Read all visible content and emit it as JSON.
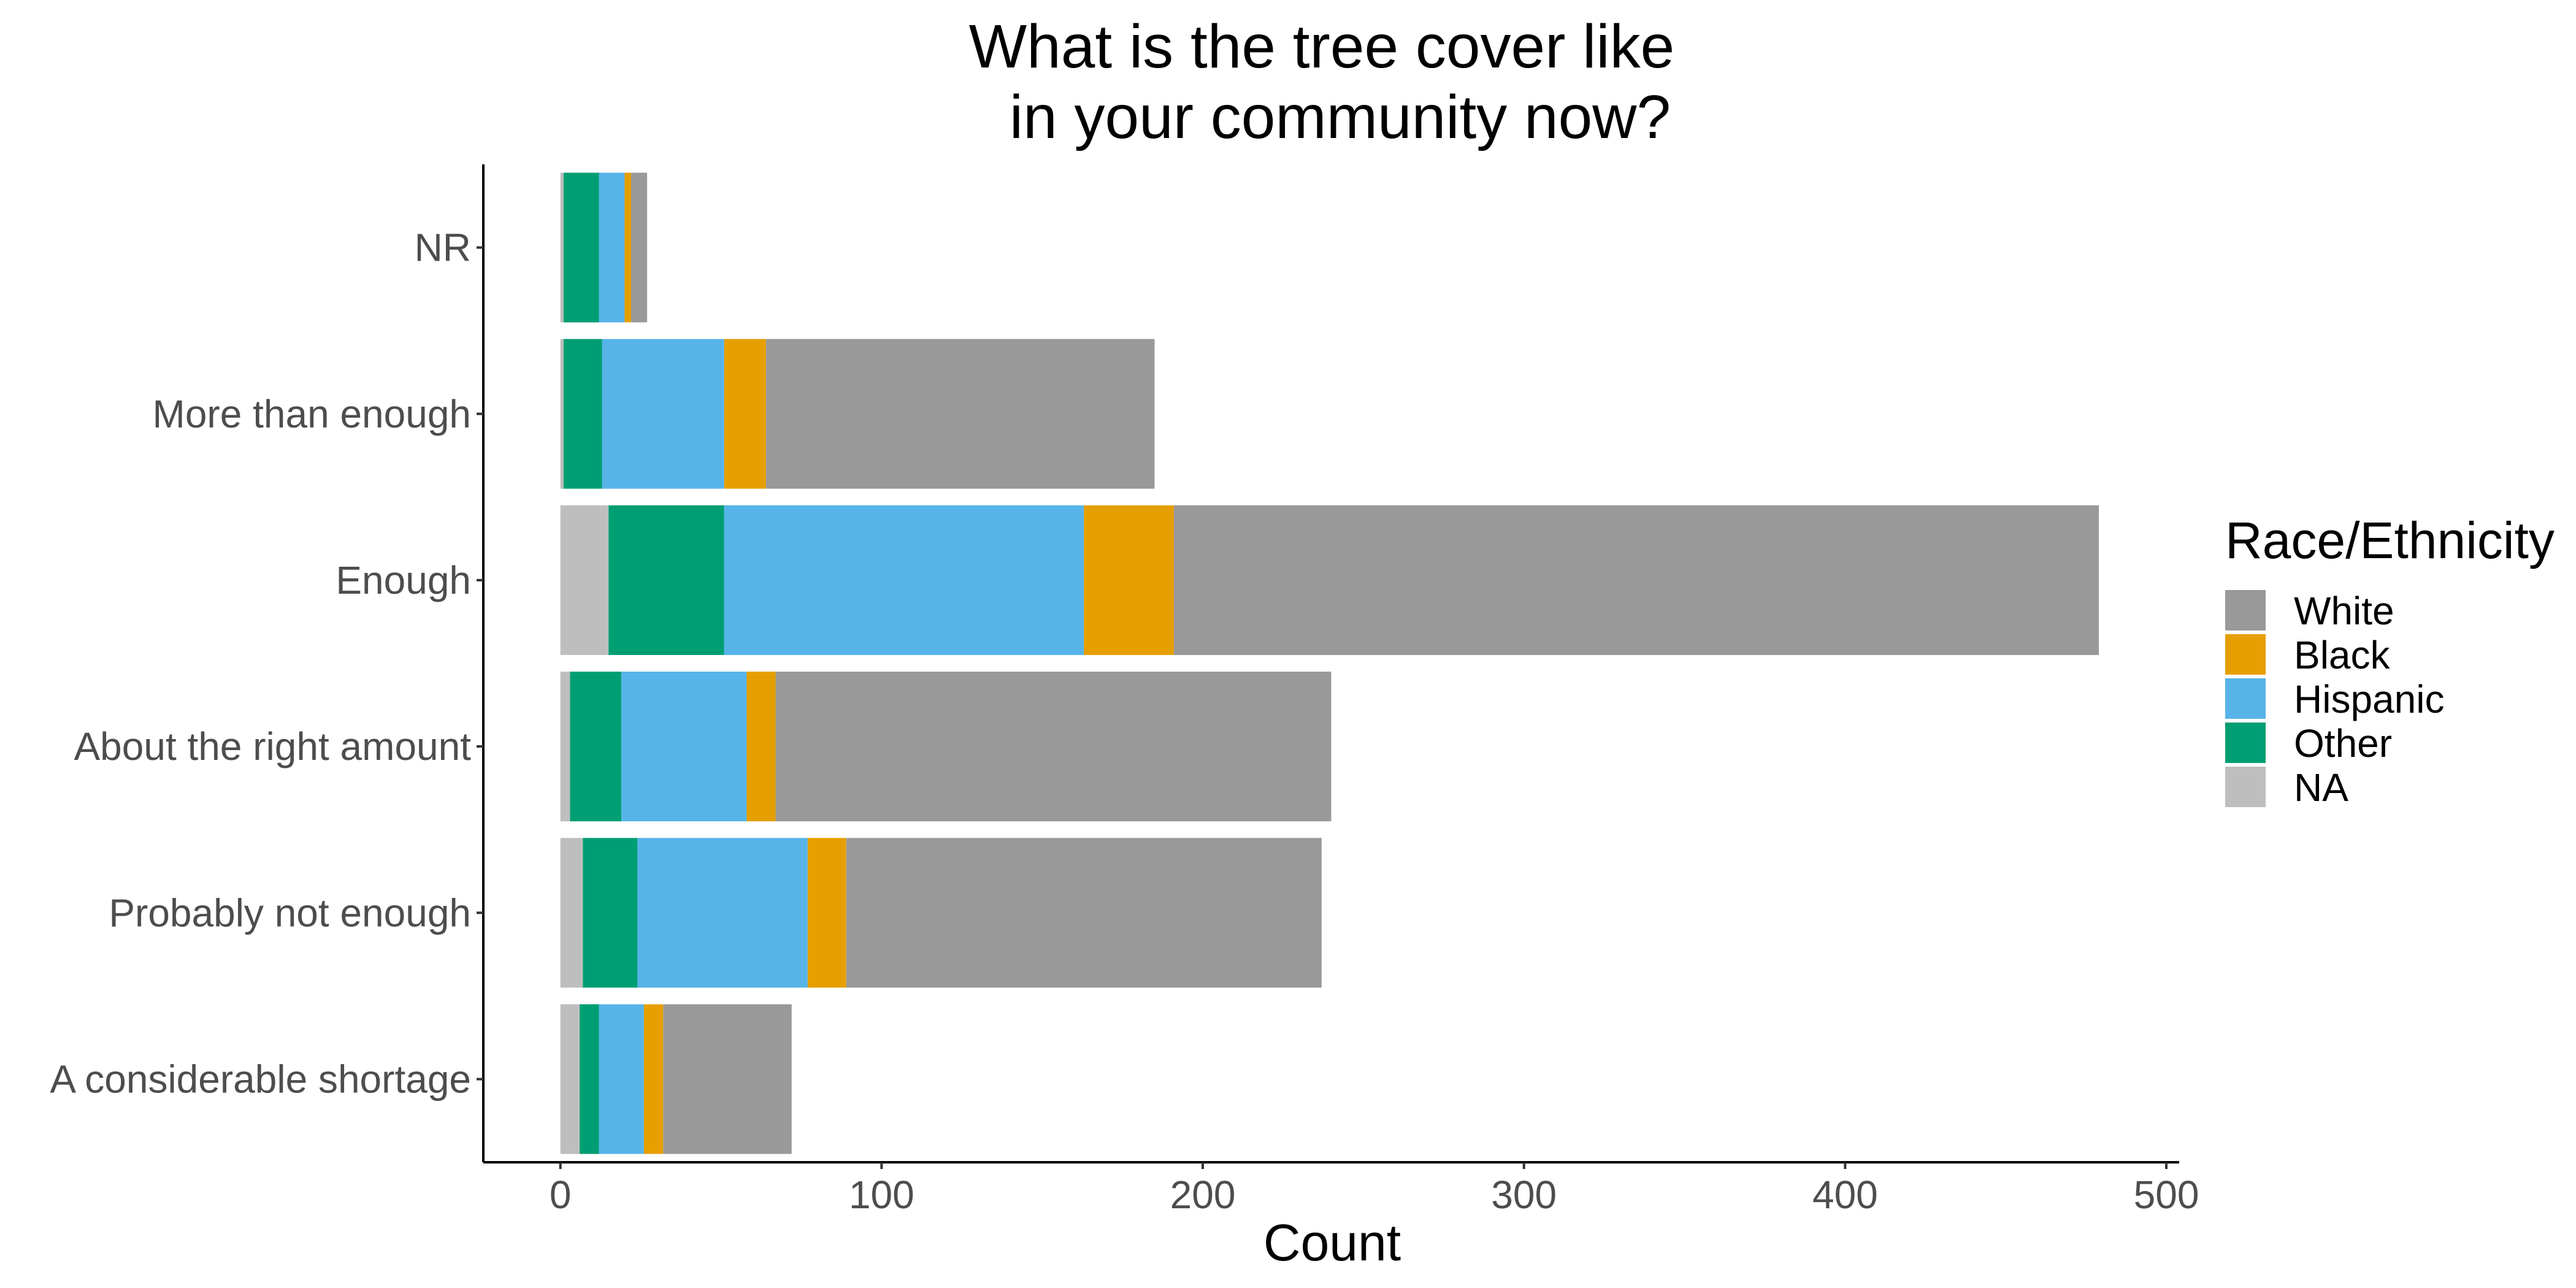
{
  "chart_data": {
    "type": "bar",
    "orientation": "horizontal",
    "stacked": true,
    "title_lines": [
      "What is the tree cover like",
      "in your community now?"
    ],
    "xlabel": "Count",
    "ylabel": "",
    "xlim": [
      -24,
      504
    ],
    "x_ticks": [
      0,
      100,
      200,
      300,
      400,
      500
    ],
    "grid": false,
    "legend_title": "Race/Ethnicity",
    "legend_position": "right",
    "categories": [
      "NR",
      "More than enough",
      "Enough",
      "About the right amount",
      "Probably not enough",
      "A considerable shortage"
    ],
    "stack_order": [
      "NA",
      "Other",
      "Hispanic",
      "Black",
      "White"
    ],
    "legend_order": [
      "White",
      "Black",
      "Hispanic",
      "Other",
      "NA"
    ],
    "series": [
      {
        "name": "White",
        "color": "#999999",
        "values": [
          5,
          121,
          288,
          173,
          148,
          40
        ]
      },
      {
        "name": "Black",
        "color": "#E69F00",
        "values": [
          2,
          13,
          28,
          9,
          12,
          6
        ]
      },
      {
        "name": "Hispanic",
        "color": "#56B4E9",
        "values": [
          8,
          38,
          112,
          39,
          53,
          14
        ]
      },
      {
        "name": "Other",
        "color": "#009E73",
        "values": [
          11,
          12,
          36,
          16,
          17,
          6
        ]
      },
      {
        "name": "NA",
        "color": "#BEBEBE",
        "values": [
          1,
          1,
          15,
          3,
          7,
          6
        ]
      }
    ]
  }
}
